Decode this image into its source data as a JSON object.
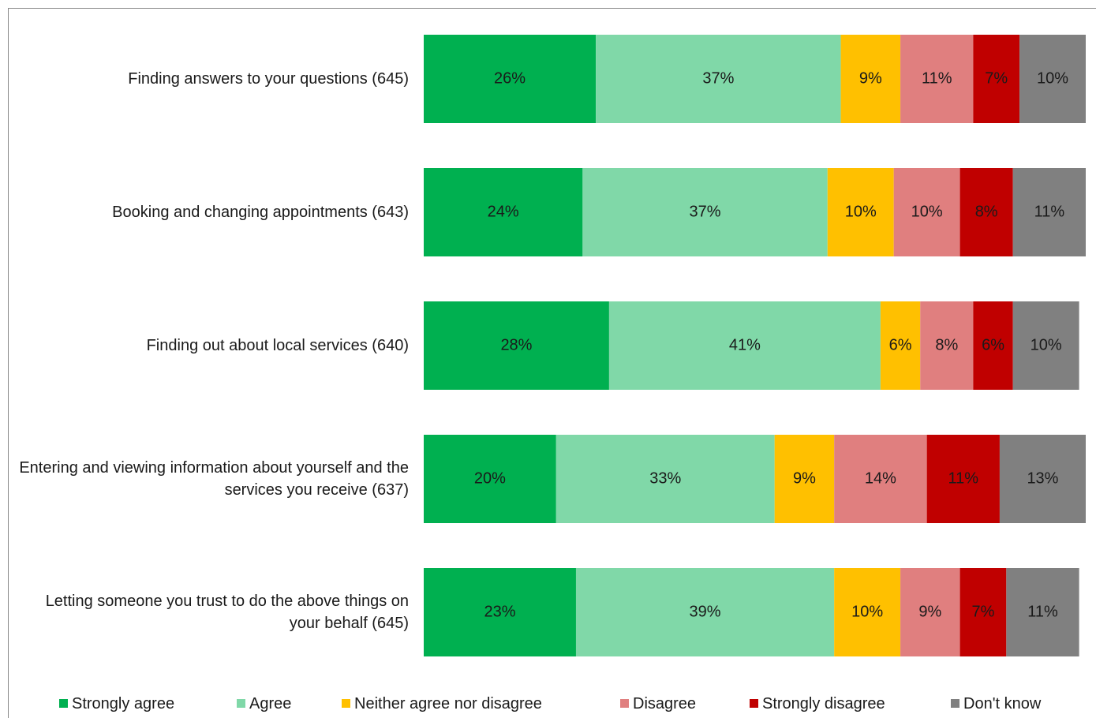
{
  "chart_data": {
    "type": "stacked-bar-horizontal",
    "categories": [
      "Finding answers to your questions (645)",
      "Booking and changing appointments (643)",
      "Finding out about local services (640)",
      "Entering and viewing information about yourself and the services you receive (637)",
      "Letting someone you trust to do the above things on your behalf (645)"
    ],
    "xlim": [
      0,
      100
    ],
    "legend": "bottom",
    "series": [
      {
        "name": "Strongly agree",
        "color": "#00b050",
        "values": [
          26,
          24,
          28,
          20,
          23
        ],
        "value_labels": [
          "26%",
          "24%",
          "28%",
          "20%",
          "23%"
        ]
      },
      {
        "name": "Agree",
        "color": "#80d8a8",
        "values": [
          37,
          37,
          41,
          33,
          39
        ],
        "value_labels": [
          "37%",
          "37%",
          "41%",
          "33%",
          "39%"
        ]
      },
      {
        "name": "Neither agree nor disagree",
        "color": "#ffc000",
        "values": [
          9,
          10,
          6,
          9,
          10
        ],
        "value_labels": [
          "9%",
          "10%",
          "6%",
          "9%",
          "10%"
        ]
      },
      {
        "name": "Disagree",
        "color": "#e07f7f",
        "values": [
          11,
          10,
          8,
          14,
          9
        ],
        "value_labels": [
          "11%",
          "10%",
          "8%",
          "14%",
          "9%"
        ]
      },
      {
        "name": "Strongly disagree",
        "color": "#c00000",
        "values": [
          7,
          8,
          6,
          11,
          7
        ],
        "value_labels": [
          "7%",
          "8%",
          "6%",
          "11%",
          "7%"
        ]
      },
      {
        "name": "Don't know",
        "color": "#808080",
        "values": [
          10,
          11,
          10,
          13,
          11
        ],
        "value_labels": [
          "10%",
          "11%",
          "10%",
          "13%",
          "11%"
        ]
      }
    ]
  }
}
